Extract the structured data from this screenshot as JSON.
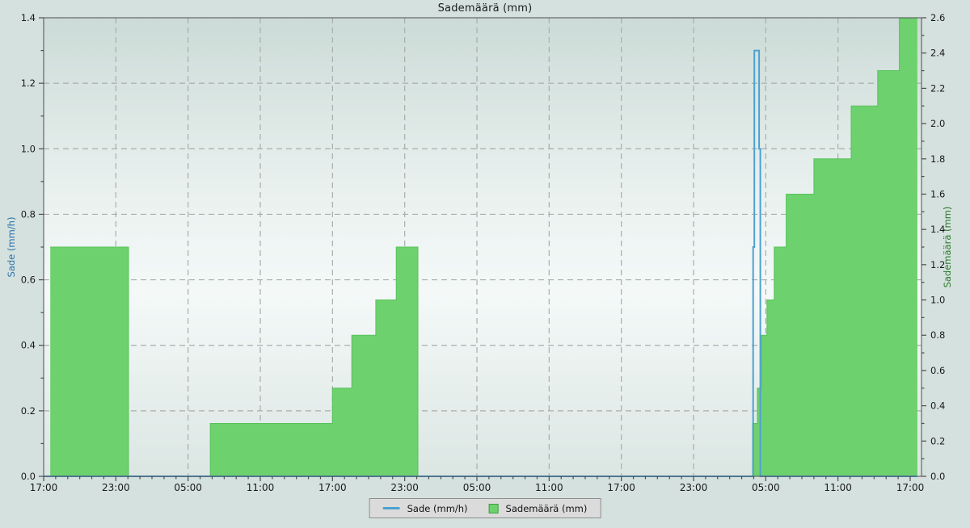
{
  "chart_data": {
    "type": "area",
    "title": "Sademäärä (mm)",
    "x_axis": {
      "tick_labels": [
        "17:00",
        "23:00",
        "05:00",
        "11:00",
        "17:00",
        "23:00",
        "05:00",
        "11:00",
        "17:00",
        "23:00",
        "05:00",
        "11:00",
        "17:00"
      ],
      "major_tick_interval_hours": 6,
      "minor_tick_interval_hours": 1,
      "span_hours": 73,
      "hours_reference": "hours counted from the first tick (17:00, day 1); window covers 3 days"
    },
    "left_axis": {
      "label": "Sade (mm/h)",
      "min": 0.0,
      "max": 1.4,
      "major_step": 0.2,
      "minor_step": 0.1,
      "color": "#2d74a8"
    },
    "right_axis": {
      "label": "Sademäärä (mm)",
      "min": 0.0,
      "max": 2.6,
      "major_step": 0.2,
      "minor_step": 0.1,
      "color": "#2c7a2c"
    },
    "grid": {
      "style": "dashed",
      "color": "#a9adac",
      "horizontal_every_left_units": 0.2,
      "vertical_every_hours": 6
    },
    "legend_position": "bottom-center",
    "series": [
      {
        "name": "Sade (mm/h)",
        "axis": "left",
        "type": "step-line",
        "color": "#4da1d1",
        "steps_hours_value": [
          [
            0,
            0
          ],
          [
            58.95,
            0.7
          ],
          [
            59.05,
            1.3
          ],
          [
            59.45,
            1.0
          ],
          [
            59.55,
            0
          ],
          [
            72.6,
            0
          ]
        ]
      },
      {
        "name": "Sademäärä (mm)",
        "axis": "right",
        "type": "step-area",
        "color": "#6dd16e",
        "stroke": "#58c25a",
        "steps_hours_value": [
          [
            0.55,
            1.3
          ],
          [
            7.05,
            0
          ],
          [
            13.85,
            0.3
          ],
          [
            24.0,
            0.5
          ],
          [
            25.6,
            0.8
          ],
          [
            27.6,
            1.0
          ],
          [
            29.3,
            1.3
          ],
          [
            31.1,
            0
          ],
          [
            58.9,
            0.3
          ],
          [
            59.3,
            0.5
          ],
          [
            59.65,
            0.8
          ],
          [
            60.1,
            1.0
          ],
          [
            60.7,
            1.3
          ],
          [
            61.7,
            1.6
          ],
          [
            64.0,
            1.8
          ],
          [
            67.1,
            2.1
          ],
          [
            69.3,
            2.3
          ],
          [
            71.1,
            2.6
          ],
          [
            72.6,
            2.6
          ]
        ]
      }
    ],
    "plot_background": {
      "top": "#ccdbd7",
      "middle": "#f4f9f8",
      "bottom": "#dbe6e3"
    },
    "frame_color": "#4d4d4d",
    "text_color": "#1a1a1a"
  }
}
